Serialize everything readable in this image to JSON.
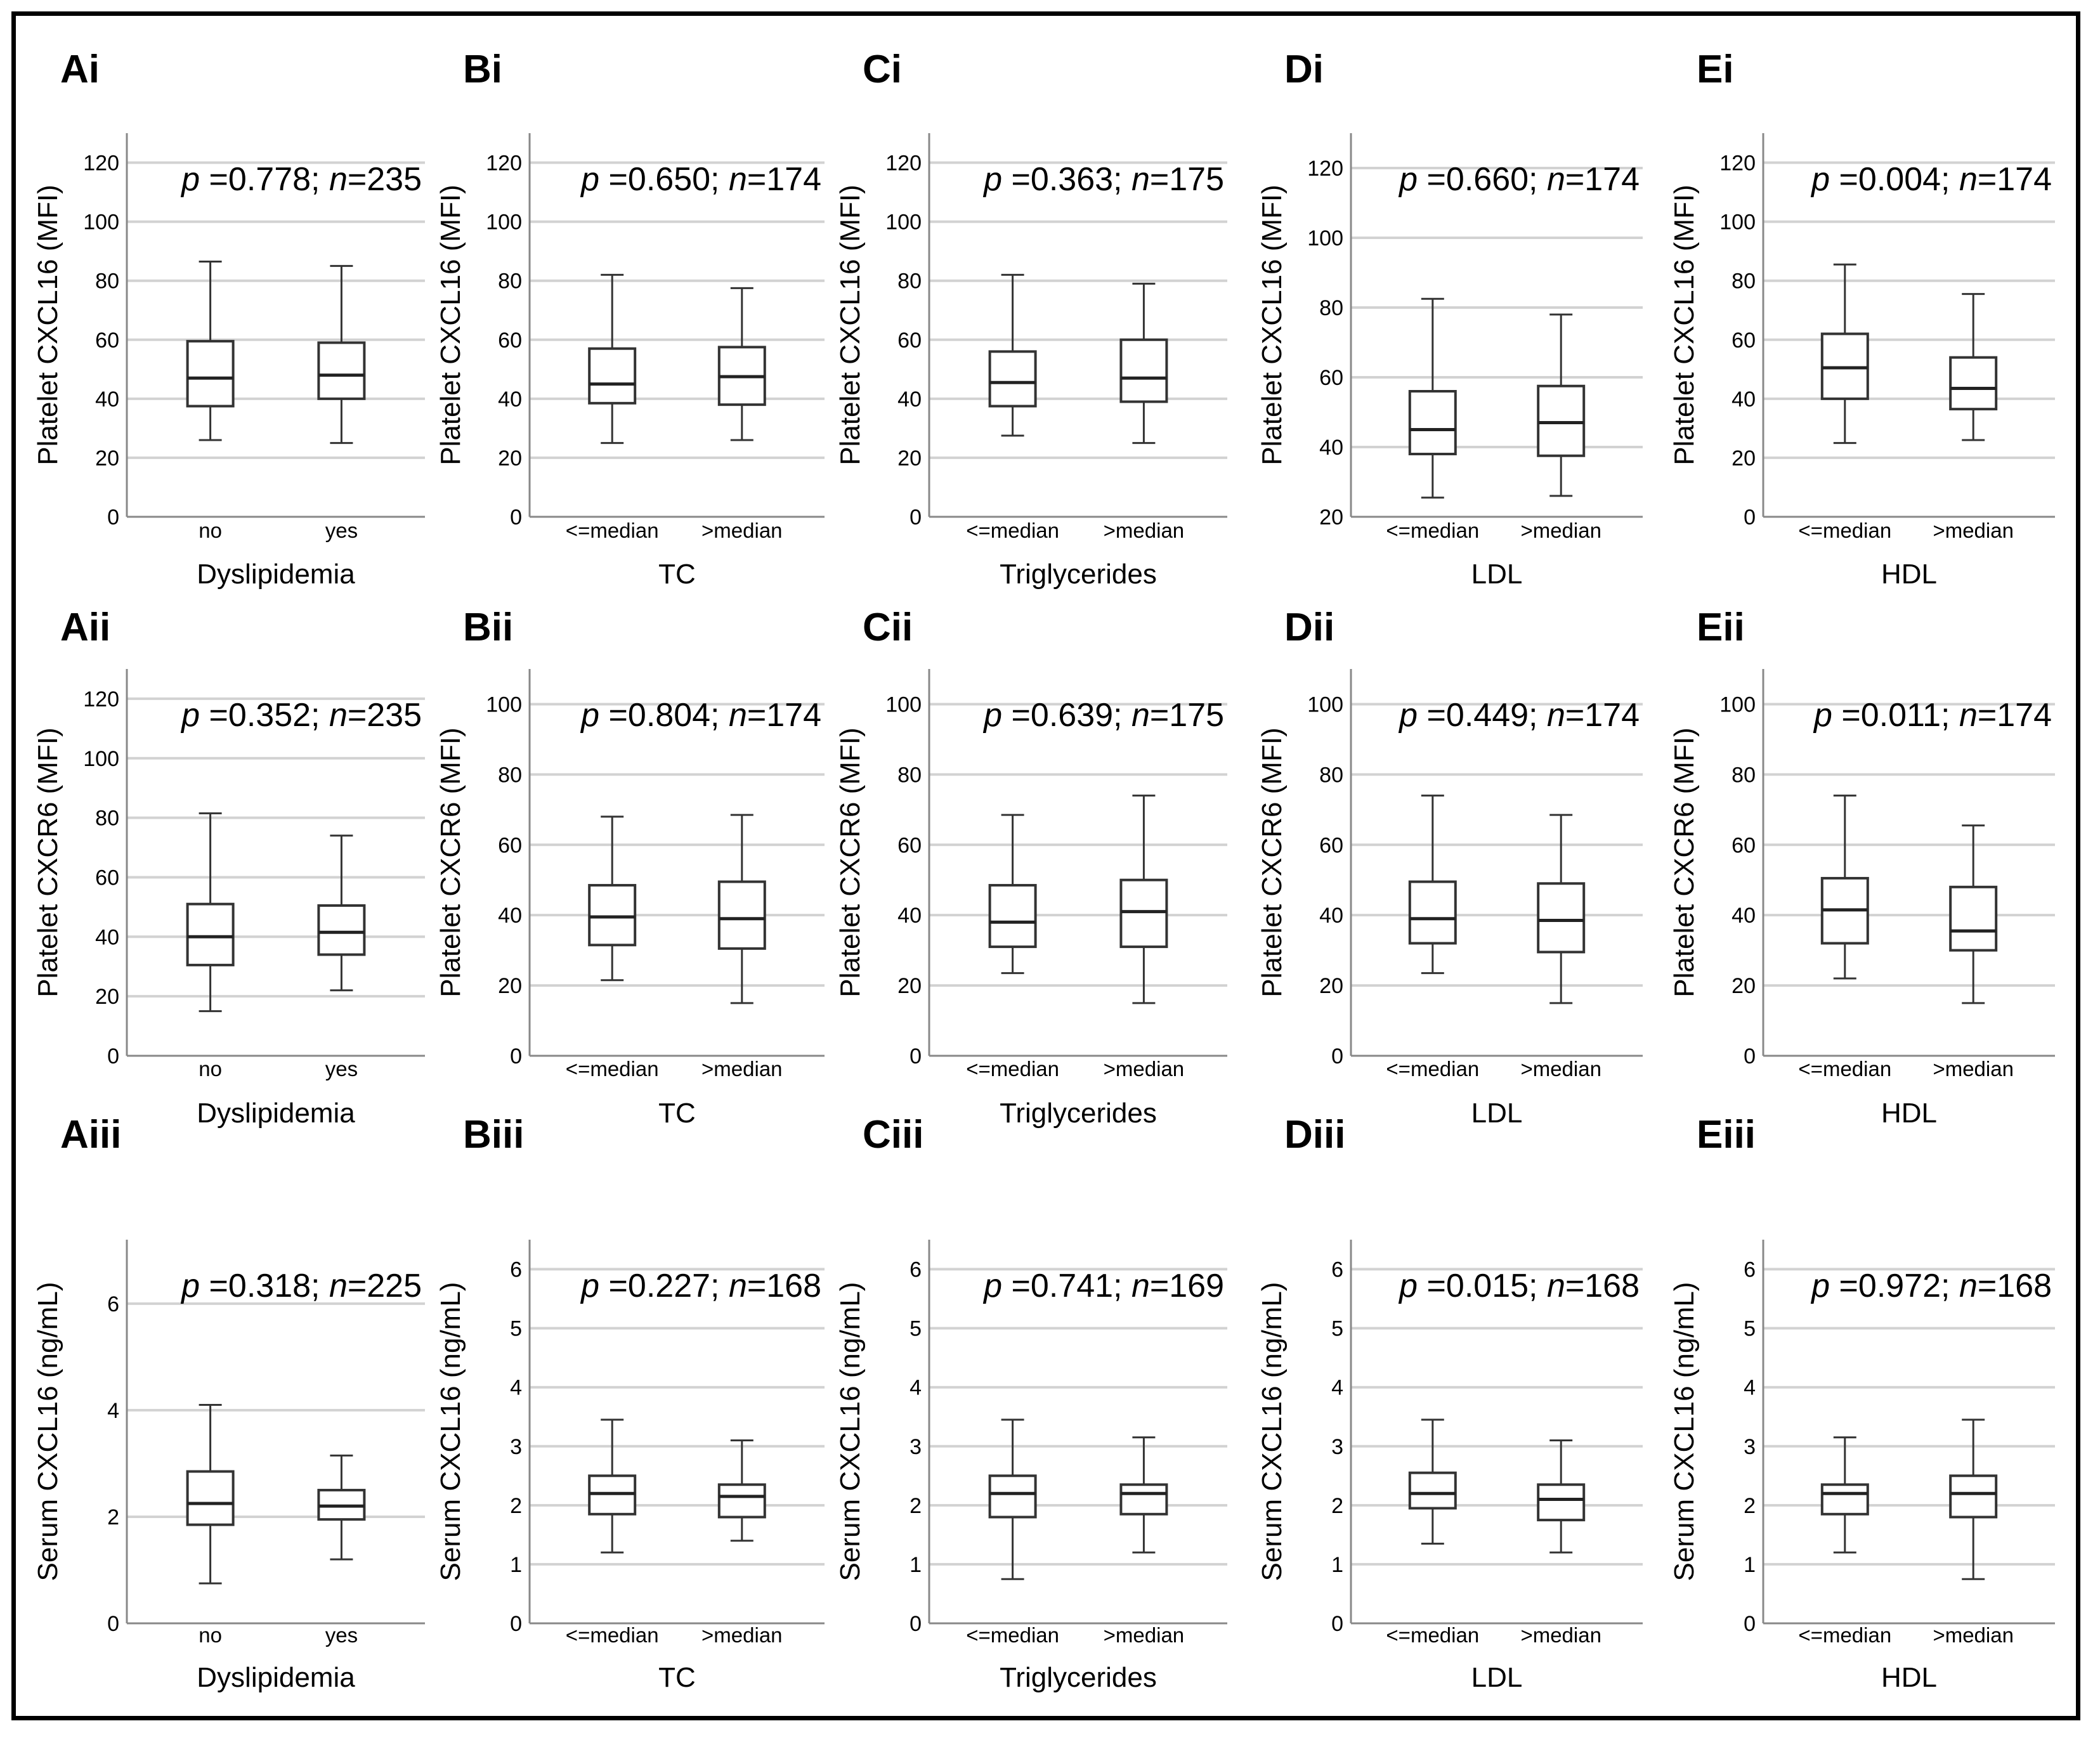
{
  "figure": {
    "row_ylabels": [
      "Platelet CXCL16 (MFI)",
      "Platelet CXCR6 (MFI)",
      "Serum CXCL16 (ng/mL)"
    ]
  },
  "chart_data": [
    {
      "id": "Ai",
      "type": "box",
      "panel_label": "Ai",
      "ylabel": "Platelet CXCL16 (MFI)",
      "xlabel": "Dyslipidemia",
      "stat_p": "0.778",
      "stat_n": "235",
      "ylim": [
        0,
        130
      ],
      "yticks": [
        0,
        20,
        40,
        60,
        80,
        100,
        120
      ],
      "categories": [
        "no",
        "yes"
      ],
      "boxes": [
        {
          "min": 26,
          "q1": 37.5,
          "median": 47,
          "q3": 59.5,
          "max": 86.5
        },
        {
          "min": 25,
          "q1": 40,
          "median": 48,
          "q3": 59,
          "max": 85
        }
      ]
    },
    {
      "id": "Bi",
      "type": "box",
      "panel_label": "Bi",
      "ylabel": "Platelet CXCL16 (MFI)",
      "xlabel": "TC",
      "stat_p": "0.650",
      "stat_n": "174",
      "ylim": [
        0,
        130
      ],
      "yticks": [
        0,
        20,
        40,
        60,
        80,
        100,
        120
      ],
      "categories": [
        "<=median",
        ">median"
      ],
      "boxes": [
        {
          "min": 25,
          "q1": 38.5,
          "median": 45,
          "q3": 57,
          "max": 82
        },
        {
          "min": 26,
          "q1": 38,
          "median": 47.5,
          "q3": 57.5,
          "max": 77.5
        }
      ]
    },
    {
      "id": "Ci",
      "type": "box",
      "panel_label": "Ci",
      "ylabel": "Platelet CXCL16 (MFI)",
      "xlabel": "Triglycerides",
      "stat_p": "0.363",
      "stat_n": "175",
      "ylim": [
        0,
        130
      ],
      "yticks": [
        0,
        20,
        40,
        60,
        80,
        100,
        120
      ],
      "categories": [
        "<=median",
        ">median"
      ],
      "boxes": [
        {
          "min": 27.5,
          "q1": 37.5,
          "median": 45.5,
          "q3": 56,
          "max": 82
        },
        {
          "min": 25,
          "q1": 39,
          "median": 47,
          "q3": 60,
          "max": 79
        }
      ]
    },
    {
      "id": "Di",
      "type": "box",
      "panel_label": "Di",
      "ylabel": "Platelet CXCL16 (MFI)",
      "xlabel": "LDL",
      "stat_p": "0.660",
      "stat_n": "174",
      "ylim": [
        20,
        130
      ],
      "yticks": [
        20,
        40,
        60,
        80,
        100,
        120
      ],
      "categories": [
        "<=median",
        ">median"
      ],
      "boxes": [
        {
          "min": 25.5,
          "q1": 38,
          "median": 45,
          "q3": 56,
          "max": 82.5
        },
        {
          "min": 26,
          "q1": 37.5,
          "median": 47,
          "q3": 57.5,
          "max": 78
        }
      ]
    },
    {
      "id": "Ei",
      "type": "box",
      "panel_label": "Ei",
      "ylabel": "Platelet CXCL16 (MFI)",
      "xlabel": "HDL",
      "stat_p": "0.004",
      "stat_n": "174",
      "ylim": [
        0,
        130
      ],
      "yticks": [
        0,
        20,
        40,
        60,
        80,
        100,
        120
      ],
      "categories": [
        "<=median",
        ">median"
      ],
      "boxes": [
        {
          "min": 25,
          "q1": 40,
          "median": 50.5,
          "q3": 62,
          "max": 85.5
        },
        {
          "min": 26,
          "q1": 36.5,
          "median": 43.5,
          "q3": 54,
          "max": 75.5
        }
      ]
    },
    {
      "id": "Aii",
      "type": "box",
      "panel_label": "Aii",
      "ylabel": "Platelet CXCR6 (MFI)",
      "xlabel": "Dyslipidemia",
      "stat_p": "0.352",
      "stat_n": "235",
      "ylim": [
        0,
        130
      ],
      "yticks": [
        0,
        20,
        40,
        60,
        80,
        100,
        120
      ],
      "categories": [
        "no",
        "yes"
      ],
      "boxes": [
        {
          "min": 15,
          "q1": 30.5,
          "median": 40,
          "q3": 51,
          "max": 81.5
        },
        {
          "min": 22,
          "q1": 34,
          "median": 41.5,
          "q3": 50.5,
          "max": 74
        }
      ]
    },
    {
      "id": "Bii",
      "type": "box",
      "panel_label": "Bii",
      "ylabel": "Platelet CXCR6 (MFI)",
      "xlabel": "TC",
      "stat_p": "0.804",
      "stat_n": "174",
      "ylim": [
        0,
        110
      ],
      "yticks": [
        0,
        20,
        40,
        60,
        80,
        100
      ],
      "categories": [
        "<=median",
        ">median"
      ],
      "boxes": [
        {
          "min": 21.5,
          "q1": 31.5,
          "median": 39.5,
          "q3": 48.5,
          "max": 68
        },
        {
          "min": 15,
          "q1": 30.5,
          "median": 39,
          "q3": 49.5,
          "max": 68.5
        }
      ]
    },
    {
      "id": "Cii",
      "type": "box",
      "panel_label": "Cii",
      "ylabel": "Platelet CXCR6 (MFI)",
      "xlabel": "Triglycerides",
      "stat_p": "0.639",
      "stat_n": "175",
      "ylim": [
        0,
        110
      ],
      "yticks": [
        0,
        20,
        40,
        60,
        80,
        100
      ],
      "categories": [
        "<=median",
        ">median"
      ],
      "boxes": [
        {
          "min": 23.5,
          "q1": 31,
          "median": 38,
          "q3": 48.5,
          "max": 68.5
        },
        {
          "min": 15,
          "q1": 31,
          "median": 41,
          "q3": 50,
          "max": 74
        }
      ]
    },
    {
      "id": "Dii",
      "type": "box",
      "panel_label": "Dii",
      "ylabel": "Platelet CXCR6 (MFI)",
      "xlabel": "LDL",
      "stat_p": "0.449",
      "stat_n": "174",
      "ylim": [
        0,
        110
      ],
      "yticks": [
        0,
        20,
        40,
        60,
        80,
        100
      ],
      "categories": [
        "<=median",
        ">median"
      ],
      "boxes": [
        {
          "min": 23.5,
          "q1": 32,
          "median": 39,
          "q3": 49.5,
          "max": 74
        },
        {
          "min": 15,
          "q1": 29.5,
          "median": 38.5,
          "q3": 49,
          "max": 68.5
        }
      ]
    },
    {
      "id": "Eii",
      "type": "box",
      "panel_label": "Eii",
      "ylabel": "Platelet CXCR6 (MFI)",
      "xlabel": "HDL",
      "stat_p": "0.011",
      "stat_n": "174",
      "ylim": [
        0,
        110
      ],
      "yticks": [
        0,
        20,
        40,
        60,
        80,
        100
      ],
      "categories": [
        "<=median",
        ">median"
      ],
      "boxes": [
        {
          "min": 22,
          "q1": 32,
          "median": 41.5,
          "q3": 50.5,
          "max": 74
        },
        {
          "min": 15,
          "q1": 30,
          "median": 35.5,
          "q3": 48,
          "max": 65.5
        }
      ]
    },
    {
      "id": "Aiii",
      "type": "box",
      "panel_label": "Aiii",
      "ylabel": "Serum CXCL16 (ng/mL)",
      "xlabel": "Dyslipidemia",
      "stat_p": "0.318",
      "stat_n": "225",
      "ylim": [
        0,
        7.2
      ],
      "yticks": [
        0,
        2,
        4,
        6
      ],
      "categories": [
        "no",
        "yes"
      ],
      "boxes": [
        {
          "min": 0.75,
          "q1": 1.85,
          "median": 2.25,
          "q3": 2.85,
          "max": 4.1
        },
        {
          "min": 1.2,
          "q1": 1.95,
          "median": 2.2,
          "q3": 2.5,
          "max": 3.15
        }
      ]
    },
    {
      "id": "Biii",
      "type": "box",
      "panel_label": "Biii",
      "ylabel": "Serum CXCL16 (ng/mL)",
      "xlabel": "TC",
      "stat_p": "0.227",
      "stat_n": "168",
      "ylim": [
        0,
        6.5
      ],
      "yticks": [
        0,
        1,
        2,
        3,
        4,
        5,
        6
      ],
      "categories": [
        "<=median",
        ">median"
      ],
      "boxes": [
        {
          "min": 1.2,
          "q1": 1.85,
          "median": 2.2,
          "q3": 2.5,
          "max": 3.45
        },
        {
          "min": 1.4,
          "q1": 1.8,
          "median": 2.15,
          "q3": 2.35,
          "max": 3.1
        }
      ]
    },
    {
      "id": "Ciii",
      "type": "box",
      "panel_label": "Ciii",
      "ylabel": "Serum CXCL16 (ng/mL)",
      "xlabel": "Triglycerides",
      "stat_p": "0.741",
      "stat_n": "169",
      "ylim": [
        0,
        6.5
      ],
      "yticks": [
        0,
        1,
        2,
        3,
        4,
        5,
        6
      ],
      "categories": [
        "<=median",
        ">median"
      ],
      "boxes": [
        {
          "min": 0.75,
          "q1": 1.8,
          "median": 2.2,
          "q3": 2.5,
          "max": 3.45
        },
        {
          "min": 1.2,
          "q1": 1.85,
          "median": 2.2,
          "q3": 2.35,
          "max": 3.15
        }
      ]
    },
    {
      "id": "Diii",
      "type": "box",
      "panel_label": "Diii",
      "ylabel": "Serum CXCL16 (ng/mL)",
      "xlabel": "LDL",
      "stat_p": "0.015",
      "stat_n": "168",
      "ylim": [
        0,
        6.5
      ],
      "yticks": [
        0,
        1,
        2,
        3,
        4,
        5,
        6
      ],
      "categories": [
        "<=median",
        ">median"
      ],
      "boxes": [
        {
          "min": 1.35,
          "q1": 1.95,
          "median": 2.2,
          "q3": 2.55,
          "max": 3.45
        },
        {
          "min": 1.2,
          "q1": 1.75,
          "median": 2.1,
          "q3": 2.35,
          "max": 3.1
        }
      ]
    },
    {
      "id": "Eiii",
      "type": "box",
      "panel_label": "Eiii",
      "ylabel": "Serum CXCL16 (ng/mL)",
      "xlabel": "HDL",
      "stat_p": "0.972",
      "stat_n": "168",
      "ylim": [
        0,
        6.5
      ],
      "yticks": [
        0,
        1,
        2,
        3,
        4,
        5,
        6
      ],
      "categories": [
        "<=median",
        ">median"
      ],
      "boxes": [
        {
          "min": 1.2,
          "q1": 1.85,
          "median": 2.2,
          "q3": 2.35,
          "max": 3.15
        },
        {
          "min": 0.75,
          "q1": 1.8,
          "median": 2.2,
          "q3": 2.5,
          "max": 3.45
        }
      ]
    }
  ]
}
